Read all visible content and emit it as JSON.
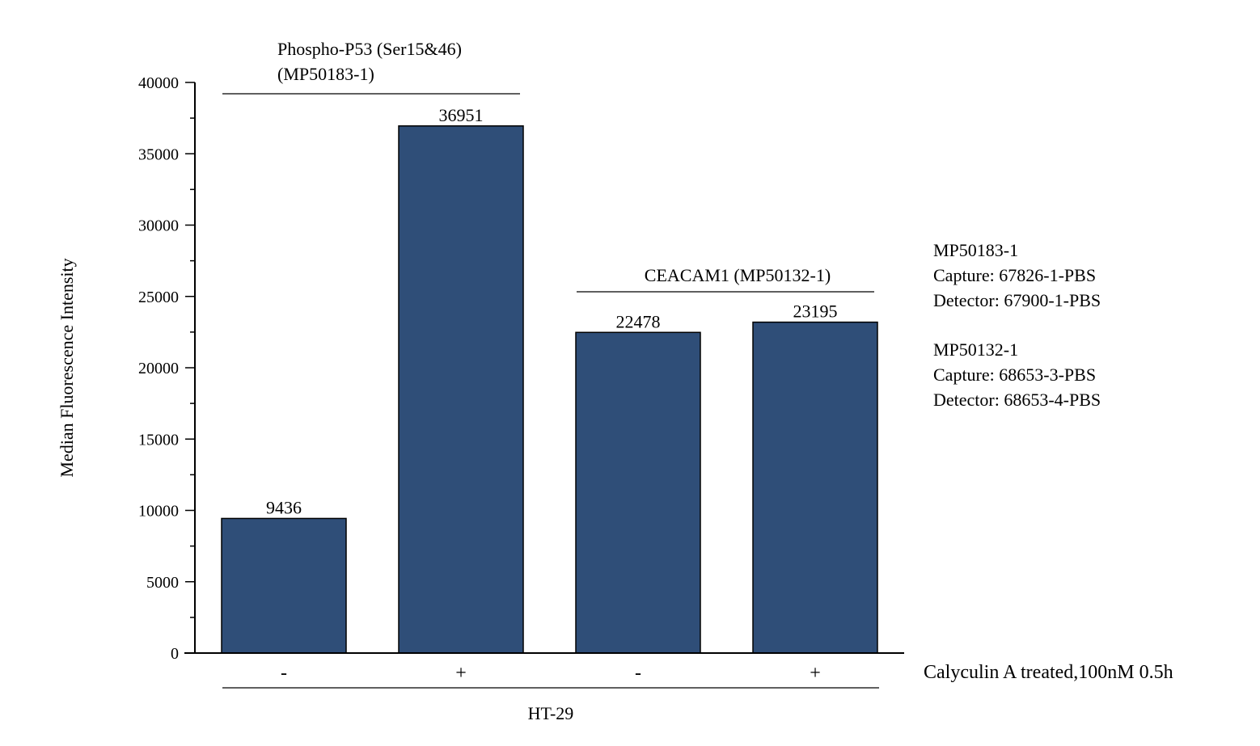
{
  "chart_data": {
    "type": "bar",
    "categories": [
      "-",
      "+",
      "-",
      "+"
    ],
    "values": [
      9436,
      36951,
      22478,
      23195
    ],
    "data_labels": [
      "9436",
      "36951",
      "22478",
      "23195"
    ],
    "title": "",
    "xlabel": "",
    "ylabel": "Median Fluorescence Intensity",
    "ylim": [
      0,
      40000
    ],
    "yticks": [
      0,
      5000,
      10000,
      15000,
      20000,
      25000,
      30000,
      35000,
      40000
    ],
    "grid": false,
    "bar_color": "#2f4e78",
    "groups": [
      {
        "label_lines": [
          "Phospho-P53 (Ser15&46)",
          "(MP50183-1)"
        ],
        "bars": [
          0,
          1
        ]
      },
      {
        "label_lines": [
          "CEACAM1 (MP50132-1)"
        ],
        "bars": [
          2,
          3
        ]
      }
    ],
    "treatment_label": "Calyculin A treated,100nM 0.5h",
    "cell_line_label": "HT-29",
    "notes": [
      [
        "MP50183-1",
        "Capture: 67826-1-PBS",
        "Detector: 67900-1-PBS"
      ],
      [
        "MP50132-1",
        "Capture: 68653-3-PBS",
        "Detector: 68653-4-PBS"
      ]
    ]
  }
}
